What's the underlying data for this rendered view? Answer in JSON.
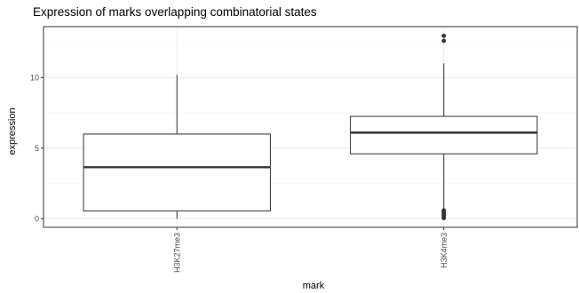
{
  "chart_data": {
    "type": "boxplot",
    "title": "Expression of marks overlapping combinatorial states",
    "xlabel": "mark",
    "ylabel": "expression",
    "categories": [
      "H3K27me3",
      "H3K4me3"
    ],
    "yticks": [
      "0",
      "5",
      "10"
    ],
    "ytick_values": [
      0,
      5,
      10
    ],
    "ylim": [
      -0.6,
      13.6
    ],
    "grid": true,
    "boxes": [
      {
        "category": "H3K27me3",
        "whisker_low": 0.0,
        "q1": 0.55,
        "median": 3.65,
        "q3": 6.0,
        "whisker_high": 10.2,
        "outliers": []
      },
      {
        "category": "H3K4me3",
        "whisker_low": 0.75,
        "q1": 4.6,
        "median": 6.1,
        "q3": 7.25,
        "whisker_high": 11.0,
        "outliers": [
          12.6,
          12.95,
          0.05,
          0.1,
          0.15,
          0.2,
          0.25,
          0.3,
          0.35,
          0.4,
          0.45,
          0.5,
          0.55,
          0.6
        ]
      }
    ]
  }
}
